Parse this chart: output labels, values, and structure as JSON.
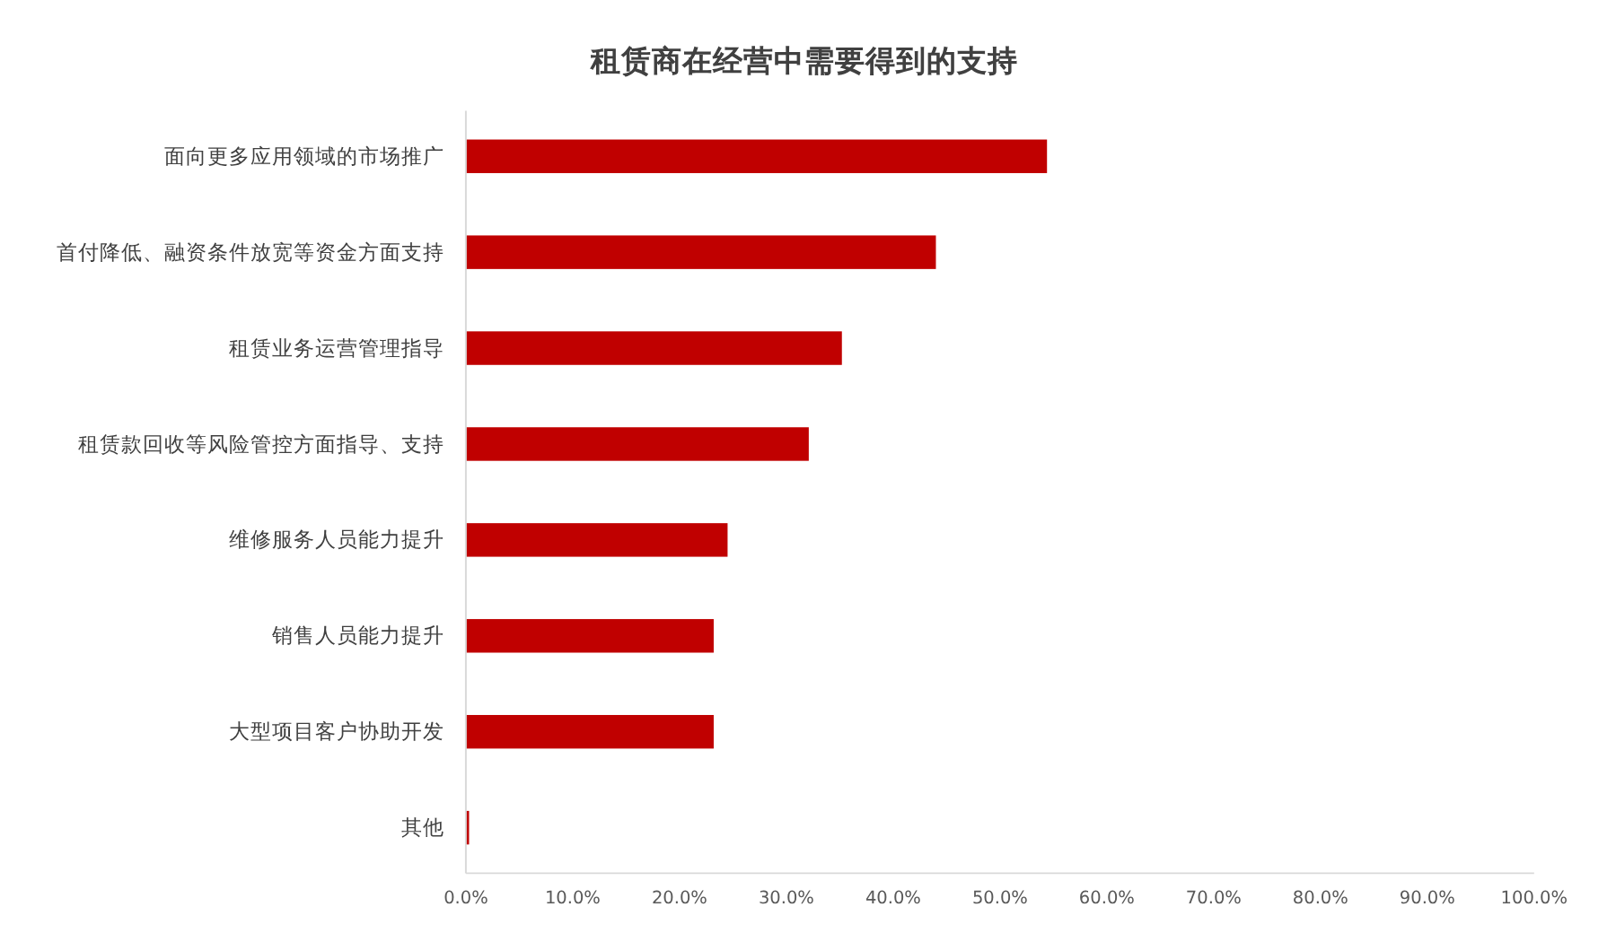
{
  "chart_data": {
    "type": "bar",
    "orientation": "horizontal",
    "title": "租赁商在经营中需要得到的支持",
    "categories": [
      "面向更多应用领域的市场推广",
      "首付降低、融资条件放宽等资金方面支持",
      "租赁业务运营管理指导",
      "租赁款回收等风险管控方面指导、支持",
      "维修服务人员能力提升",
      "销售人员能力提升",
      "大型项目客户协助开发",
      "其他"
    ],
    "values": [
      54.4,
      44.0,
      35.2,
      32.1,
      24.5,
      23.2,
      23.2,
      0.3
    ],
    "color": "#c00000",
    "xlim": [
      0,
      100
    ],
    "xticks": [
      {
        "value": 0,
        "label": "0.0%"
      },
      {
        "value": 10,
        "label": "10.0%"
      },
      {
        "value": 20,
        "label": "20.0%"
      },
      {
        "value": 30,
        "label": "30.0%"
      },
      {
        "value": 40,
        "label": "40.0%"
      },
      {
        "value": 50,
        "label": "50.0%"
      },
      {
        "value": 60,
        "label": "60.0%"
      },
      {
        "value": 70,
        "label": "70.0%"
      },
      {
        "value": 80,
        "label": "80.0%"
      },
      {
        "value": 90,
        "label": "90.0%"
      },
      {
        "value": 100,
        "label": "100.0%"
      }
    ],
    "grid": false
  }
}
